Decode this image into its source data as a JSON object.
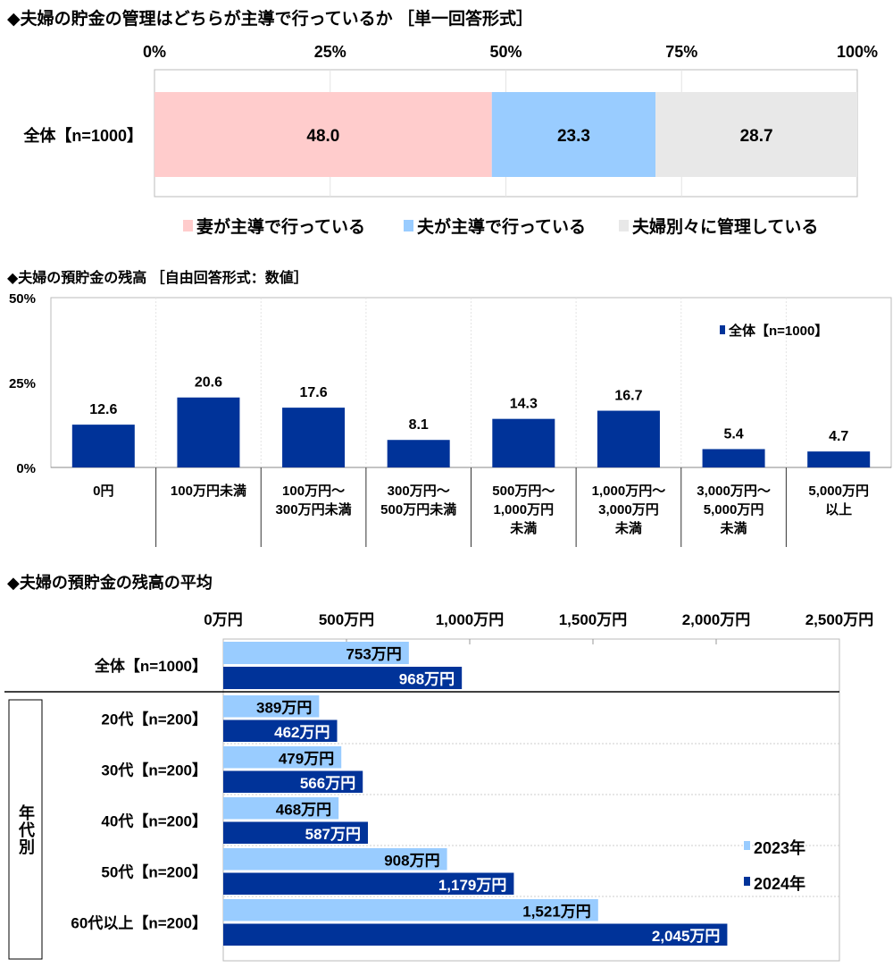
{
  "chart_data": [
    {
      "type": "bar",
      "orientation": "horizontal-stacked",
      "title": "◆夫婦の貯金の管理はどちらが主導で行っているか ［単一回答形式］",
      "categories": [
        "全体【n=1000】"
      ],
      "series": [
        {
          "name": "妻が主導で行っている",
          "values": [
            48.0
          ],
          "color": "#FFCCCC"
        },
        {
          "name": "夫が主導で行っている",
          "values": [
            23.3
          ],
          "color": "#99CCFF"
        },
        {
          "name": "夫婦別々に管理している",
          "values": [
            28.7
          ],
          "color": "#E8E8E8"
        }
      ],
      "xlim": [
        0,
        100
      ],
      "tick_labels": [
        "0%",
        "25%",
        "50%",
        "75%",
        "100%"
      ],
      "legend": "bottom",
      "grid": true
    },
    {
      "type": "bar",
      "title": "◆夫婦の預貯金の残高 ［自由回答形式：数値］",
      "categories": [
        "0円",
        "100万円未満",
        "100万円～\n300万円未満",
        "300万円～\n500万円未満",
        "500万円～\n1,000万円\n未満",
        "1,000万円～\n3,000万円\n未満",
        "3,000万円～\n5,000万円\n未満",
        "5,000万円\n以上"
      ],
      "series": [
        {
          "name": "全体【n=1000】",
          "values": [
            12.6,
            20.6,
            17.6,
            8.1,
            14.3,
            16.7,
            5.4,
            4.7
          ],
          "color": "#003399"
        }
      ],
      "ylim": [
        0,
        50
      ],
      "tick_labels": [
        "0%",
        "25%",
        "50%"
      ],
      "legend": "top-right",
      "grid": false
    },
    {
      "type": "bar",
      "orientation": "horizontal",
      "title": "◆夫婦の預貯金の残高の平均",
      "categories": [
        "全体【n=1000】",
        "20代【n=200】",
        "30代【n=200】",
        "40代【n=200】",
        "50代【n=200】",
        "60代以上【n=200】"
      ],
      "group_label": "年代別",
      "series": [
        {
          "name": "2023年",
          "values": [
            753,
            389,
            479,
            468,
            908,
            1521
          ],
          "labels": [
            "753万円",
            "389万円",
            "479万円",
            "468万円",
            "908万円",
            "1,521万円"
          ],
          "color": "#99CCFF"
        },
        {
          "name": "2024年",
          "values": [
            968,
            462,
            566,
            587,
            1179,
            2045
          ],
          "labels": [
            "968万円",
            "462万円",
            "566万円",
            "587万円",
            "1,179万円",
            "2,045万円"
          ],
          "color": "#003399"
        }
      ],
      "xlim": [
        0,
        2500
      ],
      "tick_labels": [
        "0万円",
        "500万円",
        "1,000万円",
        "1,500万円",
        "2,000万円",
        "2,500万円"
      ],
      "legend": "right",
      "grid": true
    }
  ]
}
